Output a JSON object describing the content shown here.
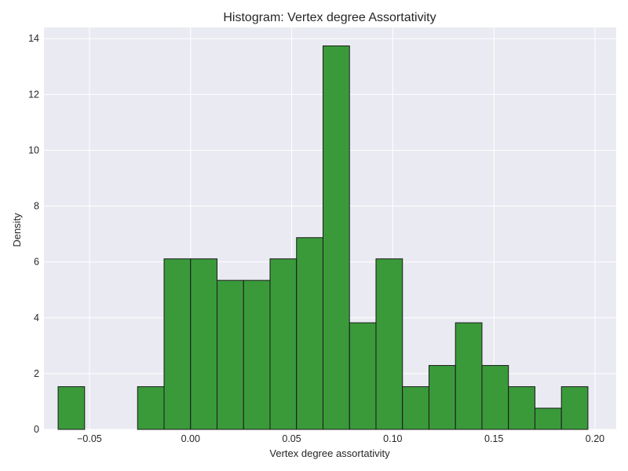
{
  "chart_data": {
    "type": "bar",
    "subtype": "histogram",
    "title": "Histogram: Vertex degree Assortativity",
    "xlabel": "Vertex degree assortativity",
    "ylabel": "Density",
    "xlim": [
      -0.0725,
      0.2105
    ],
    "ylim": [
      0,
      14.4
    ],
    "grid": true,
    "bar_color": "#3a9a3a",
    "edge_color": "#1a1a1a",
    "background_color": "#eaeaf2",
    "bins": [
      {
        "x0": -0.0655,
        "x1": -0.0524,
        "value": 1.53
      },
      {
        "x0": -0.0524,
        "x1": -0.0393,
        "value": 0
      },
      {
        "x0": -0.0393,
        "x1": -0.0262,
        "value": 0
      },
      {
        "x0": -0.0262,
        "x1": -0.0131,
        "value": 1.53
      },
      {
        "x0": -0.0131,
        "x1": 0.0,
        "value": 6.11
      },
      {
        "x0": 0.0,
        "x1": 0.0131,
        "value": 6.11
      },
      {
        "x0": 0.0131,
        "x1": 0.0262,
        "value": 5.34
      },
      {
        "x0": 0.0262,
        "x1": 0.0393,
        "value": 5.34
      },
      {
        "x0": 0.0393,
        "x1": 0.0524,
        "value": 6.11
      },
      {
        "x0": 0.0524,
        "x1": 0.0655,
        "value": 6.87
      },
      {
        "x0": 0.0655,
        "x1": 0.0786,
        "value": 13.74
      },
      {
        "x0": 0.0786,
        "x1": 0.0917,
        "value": 3.82
      },
      {
        "x0": 0.0917,
        "x1": 0.1048,
        "value": 6.11
      },
      {
        "x0": 0.1048,
        "x1": 0.1179,
        "value": 1.53
      },
      {
        "x0": 0.1179,
        "x1": 0.131,
        "value": 2.29
      },
      {
        "x0": 0.131,
        "x1": 0.1441,
        "value": 3.82
      },
      {
        "x0": 0.1441,
        "x1": 0.1572,
        "value": 2.29
      },
      {
        "x0": 0.1572,
        "x1": 0.1703,
        "value": 1.53
      },
      {
        "x0": 0.1703,
        "x1": 0.1834,
        "value": 0.76
      },
      {
        "x0": 0.1834,
        "x1": 0.1965,
        "value": 1.53
      }
    ],
    "x_ticks": [
      {
        "value": -0.05,
        "label": "−0.05"
      },
      {
        "value": 0.0,
        "label": "0.00"
      },
      {
        "value": 0.05,
        "label": "0.05"
      },
      {
        "value": 0.1,
        "label": "0.10"
      },
      {
        "value": 0.15,
        "label": "0.15"
      },
      {
        "value": 0.2,
        "label": "0.20"
      }
    ],
    "y_ticks": [
      {
        "value": 0,
        "label": "0"
      },
      {
        "value": 2,
        "label": "2"
      },
      {
        "value": 4,
        "label": "4"
      },
      {
        "value": 6,
        "label": "6"
      },
      {
        "value": 8,
        "label": "8"
      },
      {
        "value": 10,
        "label": "10"
      },
      {
        "value": 12,
        "label": "12"
      },
      {
        "value": 14,
        "label": "14"
      }
    ]
  }
}
